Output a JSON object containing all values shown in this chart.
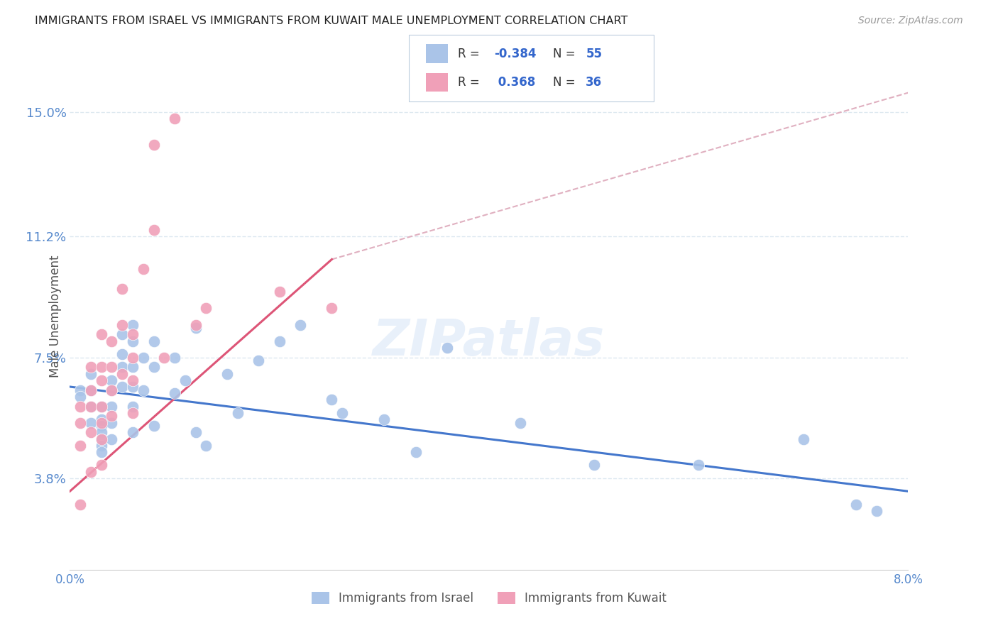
{
  "title": "IMMIGRANTS FROM ISRAEL VS IMMIGRANTS FROM KUWAIT MALE UNEMPLOYMENT CORRELATION CHART",
  "source": "Source: ZipAtlas.com",
  "ylabel": "Male Unemployment",
  "legend_label1": "Immigrants from Israel",
  "legend_label2": "Immigrants from Kuwait",
  "r1": "-0.384",
  "n1": "55",
  "r2": " 0.368",
  "n2": "36",
  "xlim": [
    0.0,
    0.08
  ],
  "ylim": [
    0.01,
    0.165
  ],
  "yticks": [
    0.038,
    0.075,
    0.112,
    0.15
  ],
  "ytick_labels": [
    "3.8%",
    "7.5%",
    "11.2%",
    "15.0%"
  ],
  "xticks": [
    0.0,
    0.01,
    0.02,
    0.03,
    0.04,
    0.05,
    0.06,
    0.07,
    0.08
  ],
  "xtick_labels": [
    "0.0%",
    "",
    "",
    "",
    "",
    "",
    "",
    "",
    "8.0%"
  ],
  "color_israel": "#aac4e8",
  "color_kuwait": "#f0a0b8",
  "line_color_israel": "#4477cc",
  "line_color_kuwait": "#dd5577",
  "dashed_line_color": "#e0b0c0",
  "israel_x": [
    0.001,
    0.001,
    0.002,
    0.002,
    0.002,
    0.002,
    0.003,
    0.003,
    0.003,
    0.003,
    0.003,
    0.003,
    0.003,
    0.004,
    0.004,
    0.004,
    0.004,
    0.004,
    0.005,
    0.005,
    0.005,
    0.005,
    0.006,
    0.006,
    0.006,
    0.006,
    0.006,
    0.006,
    0.007,
    0.007,
    0.008,
    0.008,
    0.008,
    0.01,
    0.01,
    0.011,
    0.012,
    0.012,
    0.013,
    0.015,
    0.016,
    0.018,
    0.02,
    0.022,
    0.025,
    0.026,
    0.03,
    0.033,
    0.036,
    0.043,
    0.05,
    0.06,
    0.07,
    0.075,
    0.077
  ],
  "israel_y": [
    0.065,
    0.063,
    0.07,
    0.065,
    0.06,
    0.055,
    0.06,
    0.056,
    0.054,
    0.052,
    0.05,
    0.048,
    0.046,
    0.068,
    0.065,
    0.06,
    0.055,
    0.05,
    0.082,
    0.076,
    0.072,
    0.066,
    0.085,
    0.08,
    0.072,
    0.066,
    0.06,
    0.052,
    0.075,
    0.065,
    0.08,
    0.072,
    0.054,
    0.075,
    0.064,
    0.068,
    0.084,
    0.052,
    0.048,
    0.07,
    0.058,
    0.074,
    0.08,
    0.085,
    0.062,
    0.058,
    0.056,
    0.046,
    0.078,
    0.055,
    0.042,
    0.042,
    0.05,
    0.03,
    0.028
  ],
  "kuwait_x": [
    0.001,
    0.001,
    0.001,
    0.001,
    0.002,
    0.002,
    0.002,
    0.002,
    0.002,
    0.003,
    0.003,
    0.003,
    0.003,
    0.003,
    0.003,
    0.003,
    0.004,
    0.004,
    0.004,
    0.004,
    0.005,
    0.005,
    0.005,
    0.006,
    0.006,
    0.006,
    0.006,
    0.007,
    0.008,
    0.008,
    0.009,
    0.01,
    0.012,
    0.013,
    0.02,
    0.025
  ],
  "kuwait_y": [
    0.06,
    0.055,
    0.048,
    0.03,
    0.072,
    0.065,
    0.06,
    0.052,
    0.04,
    0.082,
    0.072,
    0.068,
    0.06,
    0.055,
    0.05,
    0.042,
    0.08,
    0.072,
    0.065,
    0.057,
    0.096,
    0.085,
    0.07,
    0.082,
    0.075,
    0.068,
    0.058,
    0.102,
    0.114,
    0.14,
    0.075,
    0.148,
    0.085,
    0.09,
    0.095,
    0.09
  ],
  "background_color": "#ffffff",
  "grid_color": "#dde8f0",
  "title_color": "#222222",
  "axis_label_color": "#5588cc",
  "watermark_text": "ZIPatlas",
  "watermark_color": "#ccdff5",
  "watermark_alpha": 0.45,
  "israel_trend_x0": 0.0,
  "israel_trend_y0": 0.066,
  "israel_trend_x1": 0.08,
  "israel_trend_y1": 0.034,
  "kuwait_trend_x0": 0.0,
  "kuwait_trend_y0": 0.034,
  "kuwait_trend_x1": 0.025,
  "kuwait_trend_y1": 0.105,
  "dashed_trend_x0": 0.025,
  "dashed_trend_y0": 0.105,
  "dashed_trend_x1": 0.08,
  "dashed_trend_y1": 0.156
}
